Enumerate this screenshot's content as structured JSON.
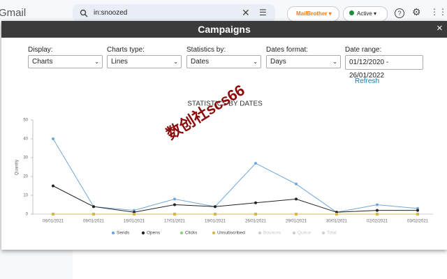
{
  "app": {
    "brand": "Gmail",
    "search": "in:snoozed",
    "addon": "MailBrother",
    "status": "Active"
  },
  "modal": {
    "title": "Campaigns",
    "close": "×",
    "controls": [
      {
        "label": "Display:",
        "value": "Charts"
      },
      {
        "label": "Charts type:",
        "value": "Lines"
      },
      {
        "label": "Statistics by:",
        "value": "Dates"
      },
      {
        "label": "Dates format:",
        "value": "Days"
      },
      {
        "label": "Date range:",
        "value": "01/12/2020 - 26/01/2022"
      }
    ],
    "refresh": "Refresh",
    "watermark": "数创社scs66"
  },
  "chart_data": {
    "type": "line",
    "title": "STATISTICS BY DATES",
    "y_label": "Quantity",
    "categories": [
      "06/01/2021",
      "09/01/2021",
      "16/01/2021",
      "17/01/2021",
      "19/01/2021",
      "26/01/2021",
      "29/01/2021",
      "30/01/2021",
      "02/02/2021",
      "03/02/2021"
    ],
    "series": [
      {
        "name": "Sends",
        "color": "#6fa8dc",
        "values": [
          40,
          4,
          2,
          8,
          4,
          27,
          16,
          1,
          5,
          3
        ]
      },
      {
        "name": "Opens",
        "color": "#222222",
        "values": [
          15,
          4,
          1,
          5,
          4,
          6,
          8,
          1,
          2,
          2
        ]
      },
      {
        "name": "Clicks",
        "color": "#8fd17a",
        "values": [
          0,
          0,
          0,
          0,
          0,
          0,
          0,
          0,
          0,
          0
        ]
      },
      {
        "name": "Unsubscribed",
        "color": "#d4b84a",
        "values": [
          0,
          0,
          0,
          0,
          0,
          0,
          0,
          0,
          0,
          0
        ]
      }
    ],
    "hidden_legend": [
      {
        "name": "Bounces",
        "color": "#d0d0d0"
      },
      {
        "name": "Queue",
        "color": "#d0d0d0"
      },
      {
        "name": "Total",
        "color": "#d0d0d0"
      }
    ],
    "ylim": [
      0,
      50
    ],
    "yticks": [
      0,
      10,
      20,
      30,
      40,
      50
    ]
  }
}
